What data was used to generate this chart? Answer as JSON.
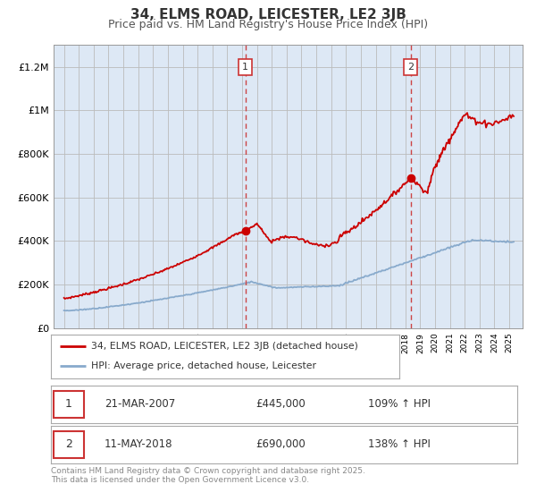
{
  "title": "34, ELMS ROAD, LEICESTER, LE2 3JB",
  "subtitle": "Price paid vs. HM Land Registry's House Price Index (HPI)",
  "ylim": [
    0,
    1300000
  ],
  "yticks": [
    0,
    200000,
    400000,
    600000,
    800000,
    1000000,
    1200000
  ],
  "ytick_labels": [
    "£0",
    "£200K",
    "£400K",
    "£600K",
    "£800K",
    "£1M",
    "£1.2M"
  ],
  "background_color": "#ffffff",
  "plot_bg_color": "#dde8f5",
  "grid_color": "#bbbbbb",
  "red_line_color": "#cc0000",
  "blue_line_color": "#88aacc",
  "vline_color": "#cc4444",
  "sale1_year": 2007.22,
  "sale1_price": 445000,
  "sale1_date": "21-MAR-2007",
  "sale1_hpi": "109%",
  "sale2_year": 2018.36,
  "sale2_price": 690000,
  "sale2_date": "11-MAY-2018",
  "sale2_hpi": "138%",
  "legend_red": "34, ELMS ROAD, LEICESTER, LE2 3JB (detached house)",
  "legend_blue": "HPI: Average price, detached house, Leicester",
  "footer": "Contains HM Land Registry data © Crown copyright and database right 2025.\nThis data is licensed under the Open Government Licence v3.0.",
  "title_fontsize": 11,
  "subtitle_fontsize": 9
}
